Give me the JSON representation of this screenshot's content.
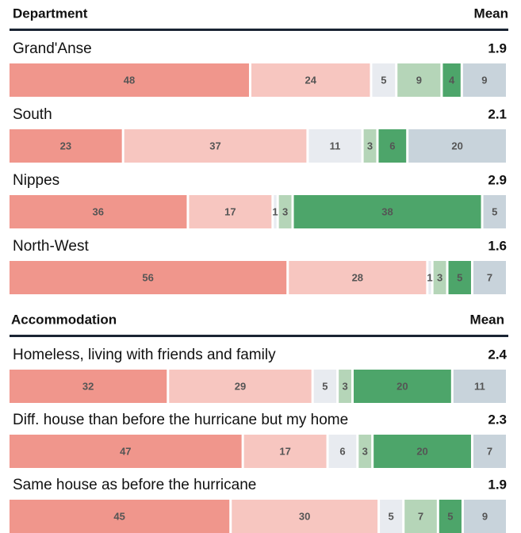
{
  "chart_data": {
    "type": "bar",
    "orientation": "horizontal",
    "stacked": true,
    "colors": [
      "#f0968c",
      "#f7c6c0",
      "#e8ebf0",
      "#b5d5b8",
      "#4da56a",
      "#c8d3db"
    ],
    "groups": [
      {
        "header": "Department",
        "mean_header": "Mean",
        "rows": [
          {
            "label": "Grand'Anse",
            "mean": 1.9,
            "values": [
              48,
              24,
              5,
              9,
              4,
              9
            ]
          },
          {
            "label": "South",
            "mean": 2.1,
            "values": [
              23,
              37,
              11,
              3,
              6,
              20
            ]
          },
          {
            "label": "Nippes",
            "mean": 2.9,
            "values": [
              36,
              17,
              1,
              3,
              38,
              5
            ]
          },
          {
            "label": "North-West",
            "mean": 1.6,
            "values": [
              56,
              28,
              1,
              3,
              5,
              7
            ]
          }
        ]
      },
      {
        "header": "Accommodation",
        "mean_header": "Mean",
        "rows": [
          {
            "label": "Homeless, living with friends and family",
            "mean": 2.4,
            "values": [
              32,
              29,
              5,
              3,
              20,
              11
            ]
          },
          {
            "label": "Diff. house than before the hurricane but my home",
            "mean": 2.3,
            "values": [
              47,
              17,
              6,
              3,
              20,
              7
            ]
          },
          {
            "label": "Same house as before the hurricane",
            "mean": 1.9,
            "values": [
              45,
              30,
              5,
              7,
              5,
              9
            ]
          }
        ]
      }
    ]
  }
}
